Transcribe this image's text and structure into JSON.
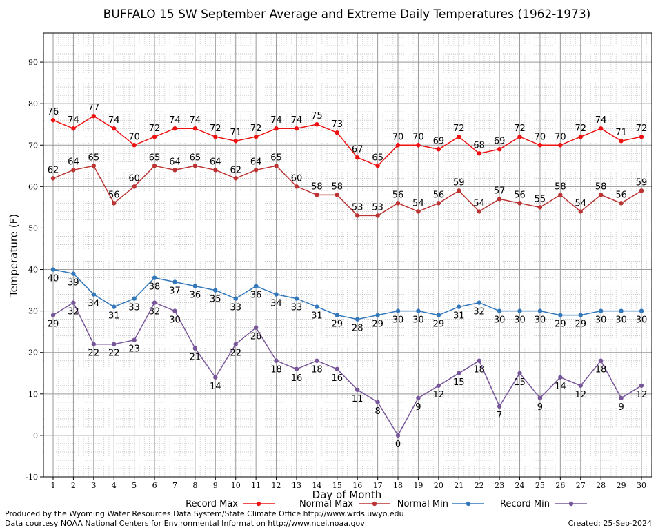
{
  "chart_data": {
    "type": "line",
    "title": "BUFFALO 15 SW September Average and Extreme Daily Temperatures (1962-1973)",
    "xlabel": "Day of Month",
    "ylabel": "Temperature (F)",
    "ylim": [
      -10,
      97
    ],
    "yticks": [
      -10,
      0,
      10,
      20,
      30,
      40,
      50,
      60,
      70,
      80,
      90
    ],
    "x": [
      1,
      2,
      3,
      4,
      5,
      6,
      7,
      8,
      9,
      10,
      11,
      12,
      13,
      14,
      15,
      16,
      17,
      18,
      19,
      20,
      21,
      22,
      23,
      24,
      25,
      26,
      27,
      28,
      29,
      30
    ],
    "grid": true,
    "legend_position": "bottom",
    "series": [
      {
        "name": "Record Max",
        "color": "#ee1111",
        "label_position": "above",
        "values": [
          76,
          74,
          77,
          74,
          70,
          72,
          74,
          74,
          72,
          71,
          72,
          74,
          74,
          75,
          73,
          67,
          65,
          70,
          70,
          69,
          72,
          68,
          69,
          72,
          70,
          70,
          72,
          74,
          71,
          72
        ]
      },
      {
        "name": "Normal Max",
        "color": "#bb3333",
        "label_position": "above",
        "values": [
          62,
          64,
          65,
          56,
          60,
          65,
          64,
          65,
          64,
          62,
          64,
          65,
          60,
          58,
          58,
          53,
          53,
          56,
          54,
          56,
          59,
          54,
          57,
          56,
          55,
          58,
          54,
          58,
          56,
          59
        ]
      },
      {
        "name": "Normal Min",
        "color": "#3377bb",
        "label_position": "below",
        "values": [
          40,
          39,
          34,
          31,
          33,
          38,
          37,
          36,
          35,
          33,
          36,
          34,
          33,
          31,
          29,
          28,
          29,
          30,
          30,
          29,
          31,
          32,
          30,
          30,
          30,
          29,
          29,
          30,
          30,
          30
        ]
      },
      {
        "name": "Record Min",
        "color": "#775599",
        "label_position": "below",
        "values": [
          29,
          32,
          22,
          22,
          23,
          32,
          30,
          21,
          14,
          22,
          26,
          18,
          16,
          18,
          16,
          11,
          8,
          0,
          9,
          12,
          15,
          18,
          7,
          15,
          9,
          14,
          12,
          18,
          9,
          12
        ]
      }
    ]
  },
  "footer": {
    "produced_by": "Produced by the Wyoming Water Resources Data System/State Climate Office http://www.wrds.uwyo.edu",
    "courtesy": "Data courtesy NOAA National Centers for Environmental Information http://www.ncei.noaa.gov",
    "created": "Created:  25-Sep-2024"
  }
}
